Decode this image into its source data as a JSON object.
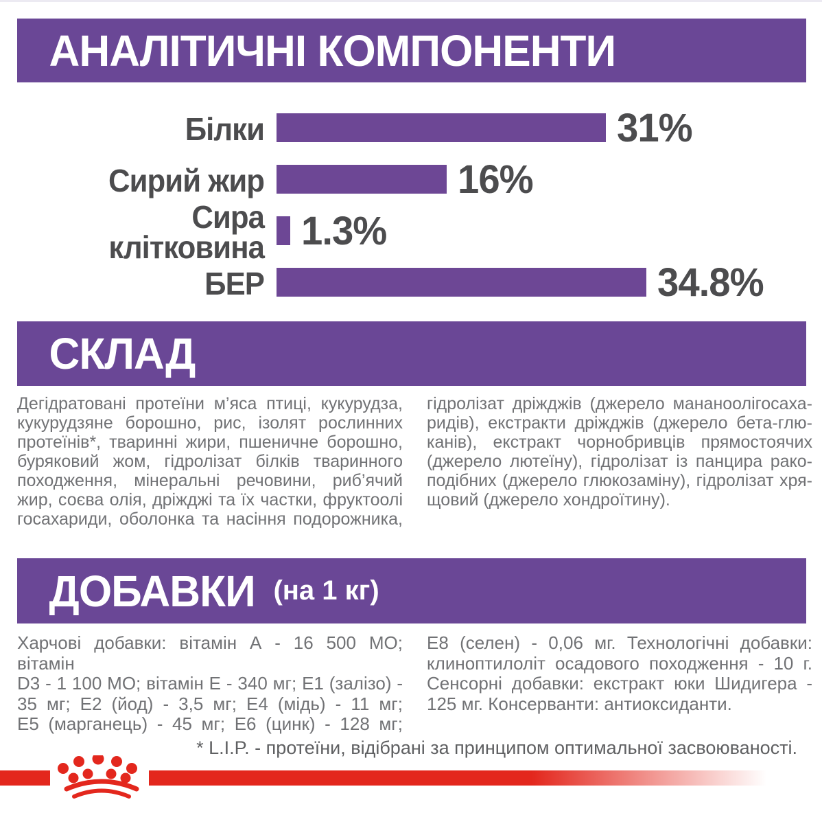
{
  "colors": {
    "purple_band": "#6a4796",
    "bar_purple": "#6d4795",
    "dark_label": "#4c4c4e",
    "body_text": "#717275",
    "footnote_text": "#5f6062",
    "brand_red": "#e3271d",
    "band_text": "#ffffff"
  },
  "sections": {
    "analytical": {
      "title": "АНАЛІТИЧНІ КОМПОНЕНТИ"
    },
    "composition": {
      "title": "СКЛАД",
      "left_lines": [
        "Дегідратовані протеїни м’яса птиці, кукурудза,",
        "кукурудзяне борошно, рис, ізолят рослинних",
        "протеїнів*, тваринні жири, пшеничне борошно,",
        "буряковий жом, гідролізат білків тваринного",
        "походження, мінеральні речовини, риб’ячий",
        "жир, соєва олія, дріжджі та їх частки, фруктоолі",
        "госахариди, оболонка та насіння подорожника,"
      ],
      "left_justify_last": true,
      "right_lines": [
        "гідролізат дріжджів (джерело мананоолігосаха-",
        "ридів), екстракти дріжджів (джерело бета-глю-",
        "канів), екстракт чорнобривців прямостоячих",
        "(джерело лютеїну), гідролізат із панцира рако-",
        "подібних (джерело глюкозаміну), гідролізат хря-",
        "щовий (джерело хондроїтину)."
      ],
      "right_justify_last": false
    },
    "additives": {
      "title": "ДОБАВКИ",
      "subtitle": "(на 1 кг)",
      "left_lines": [
        "Харчові добавки: вітамін А - 16 500 МО; вітамін",
        "D3 - 1 100 МО; вітамін Е - 340 мг; Е1 (залізо) -",
        "35 мг; Е2 (йод) - 3,5 мг; Е4 (мідь) - 11 мг;",
        "Е5 (марганець) - 45 мг; Е6 (цинк) - 128 мг;"
      ],
      "left_justify_last": true,
      "right_lines": [
        "Е8 (селен) - 0,06 мг. Технологічні добавки:",
        "клиноптилоліт осадового походження - 10 г.",
        "Сенсорні добавки: екстракт юки Шидигера -",
        "125 мг. Консерванти: антиоксиданти."
      ],
      "right_justify_last": false
    },
    "footnote": "* L.I.P. - протеїни, відібрані за принципом оптимальної засвоюваності."
  },
  "chart_data": {
    "type": "bar",
    "orientation": "horizontal",
    "title": "АНАЛІТИЧНІ КОМПОНЕНТИ",
    "categories": [
      "Білки",
      "Сирий жир",
      "Сира клітковина",
      "БЕР"
    ],
    "category_lines": [
      [
        "Білки"
      ],
      [
        "Сирий жир"
      ],
      [
        "Сира",
        "клітковина"
      ],
      [
        "БЕР"
      ]
    ],
    "values": [
      31,
      16,
      1.3,
      34.8
    ],
    "value_labels": [
      "31%",
      "16%",
      "1.3%",
      "34.8%"
    ],
    "unit": "%",
    "xlim": [
      0,
      36
    ],
    "grid": false,
    "legend": false,
    "bar_color": "#6d4795",
    "value_label_color": "#4c4c4e"
  },
  "logo": {
    "name": "royal-canin-crown-paw",
    "color": "#e3271d"
  }
}
